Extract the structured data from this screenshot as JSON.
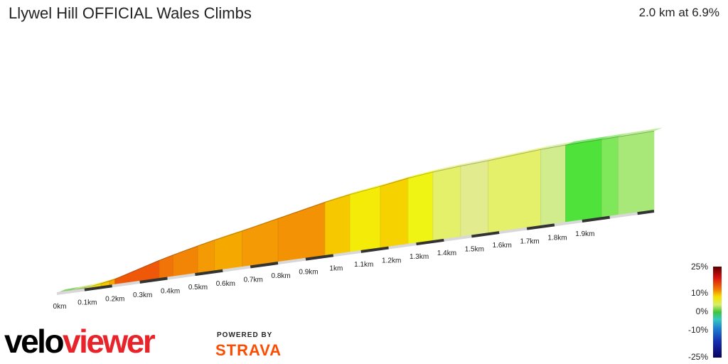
{
  "header": {
    "title": "Llywel Hill OFFICIAL Wales Climbs",
    "summary": "2.0 km at 6.9%"
  },
  "branding": {
    "logo_text": "veloviewer",
    "powered_by": "POWERED BY",
    "strava": "STRAVA",
    "strava_color": "#fc4c02"
  },
  "chart_data": {
    "type": "area",
    "title": "Llywel Hill OFFICIAL Wales Climbs",
    "distance_km": 2.0,
    "avg_gradient_pct": 6.9,
    "x_ticks": [
      "0km",
      "0.1km",
      "0.2km",
      "0.3km",
      "0.4km",
      "0.5km",
      "0.6km",
      "0.7km",
      "0.8km",
      "0.9km",
      "1km",
      "1.1km",
      "1.2km",
      "1.3km",
      "1.4km",
      "1.5km",
      "1.6km",
      "1.7km",
      "1.8km",
      "1.9km"
    ],
    "gradient_legend": [
      "25%",
      "10%",
      "0%",
      "-10%",
      "-25%"
    ],
    "segments": [
      {
        "from": 0.0,
        "to": 0.05,
        "gradient": 2,
        "color": "#5fc23c"
      },
      {
        "from": 0.05,
        "to": 0.1,
        "gradient": 3,
        "color": "#b2e06a"
      },
      {
        "from": 0.1,
        "to": 0.13,
        "gradient": 5,
        "color": "#e8ef5a"
      },
      {
        "from": 0.13,
        "to": 0.16,
        "gradient": 7,
        "color": "#f4e40c"
      },
      {
        "from": 0.16,
        "to": 0.19,
        "gradient": 9,
        "color": "#f5c800"
      },
      {
        "from": 0.19,
        "to": 0.21,
        "gradient": 11,
        "color": "#f5a800"
      },
      {
        "from": 0.21,
        "to": 0.37,
        "gradient": 15,
        "color": "#ee5808"
      },
      {
        "from": 0.37,
        "to": 0.42,
        "gradient": 13,
        "color": "#f07408"
      },
      {
        "from": 0.42,
        "to": 0.51,
        "gradient": 12,
        "color": "#f28406"
      },
      {
        "from": 0.51,
        "to": 0.57,
        "gradient": 11,
        "color": "#f49a04"
      },
      {
        "from": 0.57,
        "to": 0.67,
        "gradient": 10,
        "color": "#f5a800"
      },
      {
        "from": 0.67,
        "to": 0.8,
        "gradient": 11,
        "color": "#f49a04"
      },
      {
        "from": 0.8,
        "to": 0.97,
        "gradient": 11,
        "color": "#f39204"
      },
      {
        "from": 0.97,
        "to": 1.06,
        "gradient": 9,
        "color": "#f5c800"
      },
      {
        "from": 1.06,
        "to": 1.17,
        "gradient": 7,
        "color": "#f4ec08"
      },
      {
        "from": 1.17,
        "to": 1.27,
        "gradient": 8,
        "color": "#f5d200"
      },
      {
        "from": 1.27,
        "to": 1.36,
        "gradient": 6,
        "color": "#f0f414"
      },
      {
        "from": 1.36,
        "to": 1.46,
        "gradient": 4,
        "color": "#e4ef6a"
      },
      {
        "from": 1.46,
        "to": 1.56,
        "gradient": 3,
        "color": "#e2ec8e"
      },
      {
        "from": 1.56,
        "to": 1.75,
        "gradient": 4,
        "color": "#e4ef6a"
      },
      {
        "from": 1.75,
        "to": 1.84,
        "gradient": 2,
        "color": "#d0ec8c"
      },
      {
        "from": 1.84,
        "to": 1.97,
        "gradient": 1,
        "color": "#4ee23a"
      },
      {
        "from": 1.97,
        "to": 2.03,
        "gradient": 1,
        "color": "#7ee85a"
      },
      {
        "from": 2.03,
        "to": 2.16,
        "gradient": 1,
        "color": "#a8e878"
      }
    ]
  }
}
